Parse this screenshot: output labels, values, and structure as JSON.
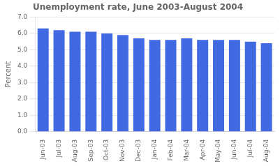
{
  "chart_data": {
    "type": "bar",
    "title": "Unemployment rate, June 2003-August 2004",
    "ylabel": "Percent",
    "categories": [
      "Jun-03",
      "Jul-03",
      "Aug-03",
      "Sep-03",
      "Oct-03",
      "Nov-03",
      "Dec-03",
      "Jan-04",
      "Feb-04",
      "Mar-04",
      "Apr-04",
      "May-04",
      "Jun-04",
      "Jul-04",
      "Aug-04"
    ],
    "values": [
      6.3,
      6.2,
      6.1,
      6.1,
      6.0,
      5.9,
      5.7,
      5.6,
      5.6,
      5.7,
      5.6,
      5.6,
      5.6,
      5.5,
      5.4
    ],
    "color": "#4169e1",
    "ylim": [
      0.0,
      7.0
    ],
    "yticks": [
      {
        "value": 0,
        "label": "0.0"
      },
      {
        "value": 1,
        "label": "1.0"
      },
      {
        "value": 2,
        "label": "2.0"
      },
      {
        "value": 3,
        "label": "3.0"
      },
      {
        "value": 4,
        "label": "4.0"
      },
      {
        "value": 5,
        "label": "5.0"
      },
      {
        "value": 6,
        "label": "6.0"
      },
      {
        "value": 7,
        "label": "7.0"
      }
    ],
    "grid": true
  }
}
